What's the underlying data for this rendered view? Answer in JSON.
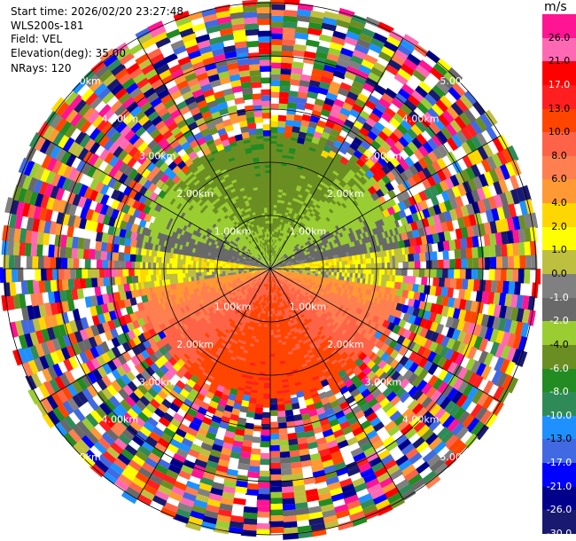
{
  "header": {
    "start_time_label": "Start time:",
    "start_time": "2026/02/20 23:27:48",
    "instrument": "WLS200s-181",
    "field_label": "Field:",
    "field": "VEL",
    "elevation_label": "Elevation(deg):",
    "elevation": "35.00",
    "nrays_label": "NRays:",
    "nrays": "120"
  },
  "colorbar": {
    "unit": "m/s",
    "ticks": [
      "26.0",
      "21.0",
      "17.0",
      "13.0",
      "10.0",
      "8.0",
      "6.0",
      "4.0",
      "2.0",
      "1.0",
      "0.0",
      "-1.0",
      "-2.0",
      "-4.0",
      "-6.0",
      "-8.0",
      "-10.0",
      "-13.0",
      "-17.0",
      "-21.0",
      "-26.0",
      "-30.0"
    ],
    "colors": [
      "#ff1493",
      "#ff69b4",
      "#ff0000",
      "#ff1f1f",
      "#ff4500",
      "#ff6347",
      "#ff7f50",
      "#ff9933",
      "#ffd700",
      "#ffff00",
      "#bfbf3f",
      "#808080",
      "#696969",
      "#9acd32",
      "#6b8e23",
      "#228b22",
      "#2e8b57",
      "#1e90ff",
      "#4169e1",
      "#0000ff",
      "#00008b",
      "#191970"
    ]
  },
  "chart_data": {
    "type": "heatmap",
    "projection": "plan-position-indicator",
    "field": "VEL",
    "unit": "m/s",
    "elevation_deg": 35.0,
    "n_rays": 120,
    "max_range_km": 5.0,
    "range_rings_km": [
      1.0,
      2.0,
      3.0,
      4.0,
      5.0
    ],
    "range_ring_labels": [
      "1.00km",
      "2.00km",
      "3.00km",
      "4.00km",
      "5.00km"
    ],
    "spoke_angles_deg": [
      0,
      30,
      60,
      90,
      120,
      150,
      180,
      210,
      240,
      270,
      300,
      330
    ],
    "velocity_bins": [
      -30.0,
      -26.0,
      -21.0,
      -17.0,
      -13.0,
      -10.0,
      -8.0,
      -6.0,
      -4.0,
      -2.0,
      -1.0,
      0.0,
      1.0,
      2.0,
      4.0,
      6.0,
      8.0,
      10.0,
      13.0,
      17.0,
      21.0,
      26.0
    ],
    "valid_data_max_range_km": 2.5,
    "sectors": [
      {
        "direction": "north",
        "velocity_range": [
          -8.0,
          -2.0
        ]
      },
      {
        "direction": "east-west center",
        "velocity_range": [
          -1.0,
          1.0
        ]
      },
      {
        "direction": "south-southwest",
        "velocity_range": [
          2.0,
          10.0
        ]
      }
    ],
    "noise_beyond_km": 2.5
  }
}
